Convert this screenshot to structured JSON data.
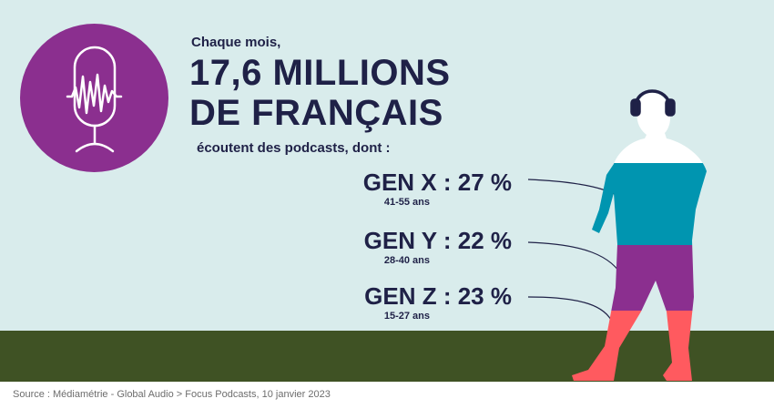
{
  "intro": "Chaque mois,",
  "headline_line1": "17,6 MILLIONS",
  "headline_line2": "DE FRANÇAIS",
  "subline": "écoutent des podcasts, dont :",
  "generations": [
    {
      "label": "GEN X : 27 %",
      "age": "41-55 ans",
      "color": "#0095b0"
    },
    {
      "label": "GEN Y : 22 %",
      "age": "28-40 ans",
      "color": "#8b2f8f"
    },
    {
      "label": "GEN Z : 23 %",
      "age": "15-27 ans",
      "color": "#ff5a5f"
    }
  ],
  "source": "Source : Médiamétrie - Global Audio > Focus Podcasts, 10 janvier 2023",
  "colors": {
    "navy": "#1f2147",
    "sky": "#d9ecec",
    "ground": "#3f5224",
    "mic_circle": "#8b2f8f"
  },
  "icons": {
    "microphone": "microphone-icon",
    "headphones": "headphones-icon"
  }
}
